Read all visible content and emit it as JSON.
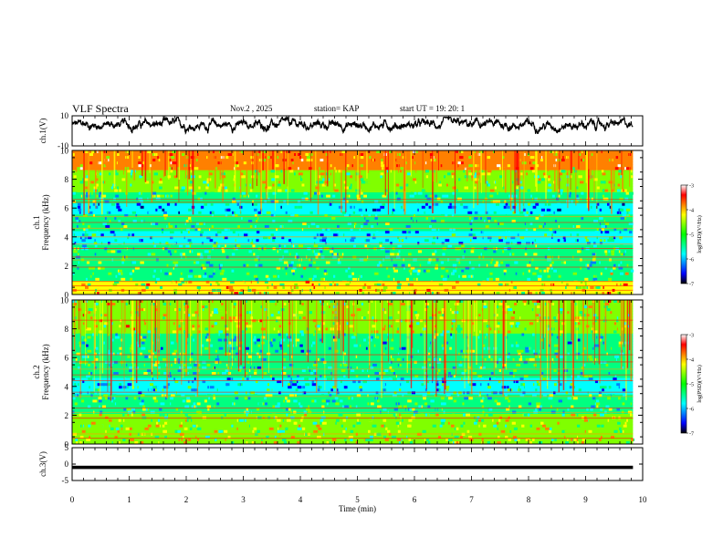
{
  "header": {
    "title": "VLF Spectra",
    "date": "Nov.2 , 2025",
    "station": "station= KAP",
    "start": "start UT = 19: 20: 1"
  },
  "chart_data": [
    {
      "type": "line",
      "name": "ch1-waveform",
      "ylabel": "ch.1(V)",
      "ylim": [
        -10,
        10
      ],
      "yticks": [
        "10",
        "-10"
      ],
      "xlim": [
        0,
        10
      ],
      "note": "broadband noise around ~4 V (amplitude roughly 0 to 8 V)"
    },
    {
      "type": "heatmap",
      "name": "ch1-spectrogram",
      "ylabel": "ch.1\nFrequency (kHz)",
      "ylabel_lines": [
        "ch.1",
        "Frequency (kHz)"
      ],
      "ylim": [
        0,
        10
      ],
      "yticks": [
        "0",
        "2",
        "4",
        "6",
        "8",
        "10"
      ],
      "xlim": [
        0,
        10
      ],
      "colorbar": {
        "label": "log(PSD)(V²/Hz)",
        "range": [
          -7,
          -3
        ],
        "ticks": [
          "-3",
          "-4",
          "-5",
          "-6",
          "-7"
        ]
      }
    },
    {
      "type": "heatmap",
      "name": "ch2-spectrogram",
      "ylabel": "ch.2\nFrequency (kHz)",
      "ylabel_lines": [
        "ch.2",
        "Frequency (kHz)"
      ],
      "ylim": [
        0,
        10
      ],
      "yticks": [
        "0",
        "2",
        "4",
        "6",
        "8",
        "10"
      ],
      "xlim": [
        0,
        10
      ],
      "colorbar": {
        "label": "log(PSD)(V²/Hz)",
        "range": [
          -7,
          -3
        ],
        "ticks": [
          "-3",
          "-4",
          "-5",
          "-6",
          "-7"
        ]
      }
    },
    {
      "type": "line",
      "name": "ch3-waveform",
      "ylabel": "ch.3(V)",
      "ylim": [
        -5,
        5
      ],
      "yticks": [
        "5",
        "0",
        "-5"
      ],
      "xlim": [
        0,
        10
      ],
      "note": "dense oscillation between about -1.5 and -0.5 V"
    }
  ],
  "x_axis": {
    "label": "Time (min)",
    "ticks": [
      "0",
      "1",
      "2",
      "3",
      "4",
      "5",
      "6",
      "7",
      "8",
      "9",
      "10"
    ],
    "data_end": 9.83
  },
  "colors": {
    "axis": "#000000",
    "trace": "#000000",
    "colormap": [
      "#000080",
      "#0000ff",
      "#0080ff",
      "#00ffff",
      "#00ff80",
      "#80ff00",
      "#ffff00",
      "#ff8000",
      "#ff0000",
      "#ffffff"
    ]
  }
}
